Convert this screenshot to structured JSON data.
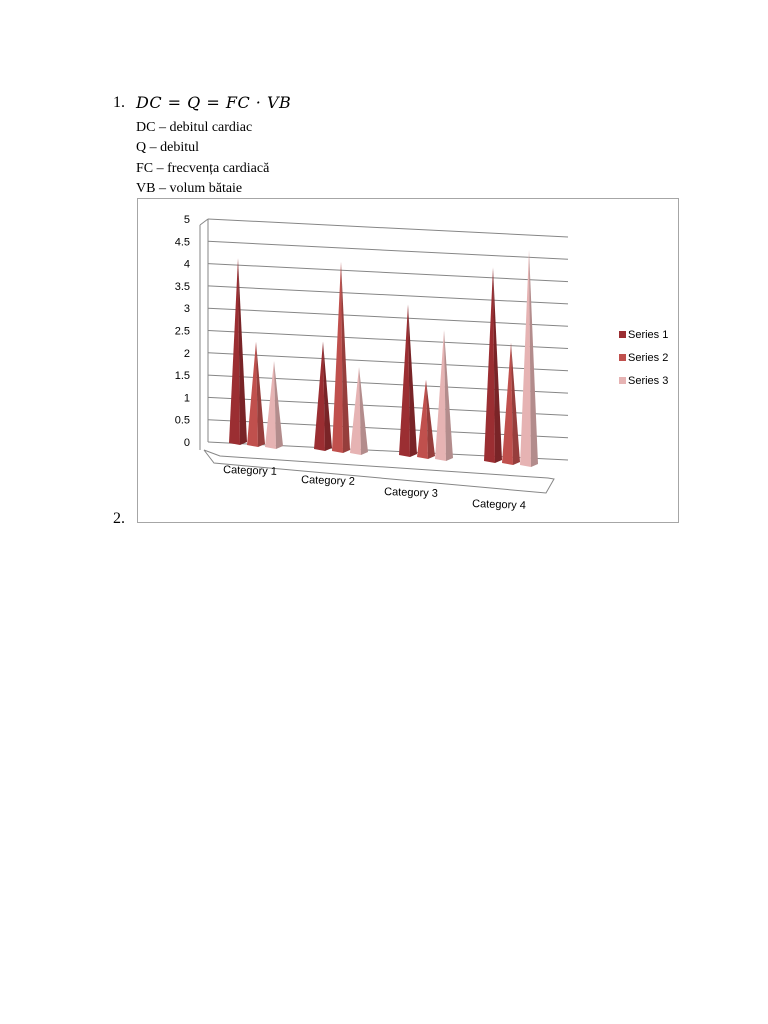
{
  "item1": {
    "number": "1.",
    "formula": "DC = Q = FC · VB",
    "definitions": [
      "DC – debitul cardiac",
      "Q – debitul",
      "FC – frecvența cardiacă",
      "VB – volum bătaie"
    ]
  },
  "item2": {
    "number": "2."
  },
  "chart_data": {
    "type": "bar",
    "style": "3d-pyramid",
    "categories": [
      "Category 1",
      "Category 2",
      "Category 3",
      "Category 4"
    ],
    "series": [
      {
        "name": "Series 1",
        "values": [
          4.3,
          2.5,
          3.5,
          4.5
        ],
        "color": "#9b2e32"
      },
      {
        "name": "Series 2",
        "values": [
          2.4,
          4.4,
          1.8,
          2.8
        ],
        "color": "#c0504d"
      },
      {
        "name": "Series 3",
        "values": [
          2,
          2,
          3,
          5
        ],
        "color": "#e6b3b3"
      }
    ],
    "y_ticks": [
      "0",
      "0.5",
      "1",
      "1.5",
      "2",
      "2.5",
      "3",
      "3.5",
      "4",
      "4.5",
      "5"
    ],
    "ylim": [
      0,
      5
    ],
    "grid": true,
    "legend_position": "right"
  }
}
